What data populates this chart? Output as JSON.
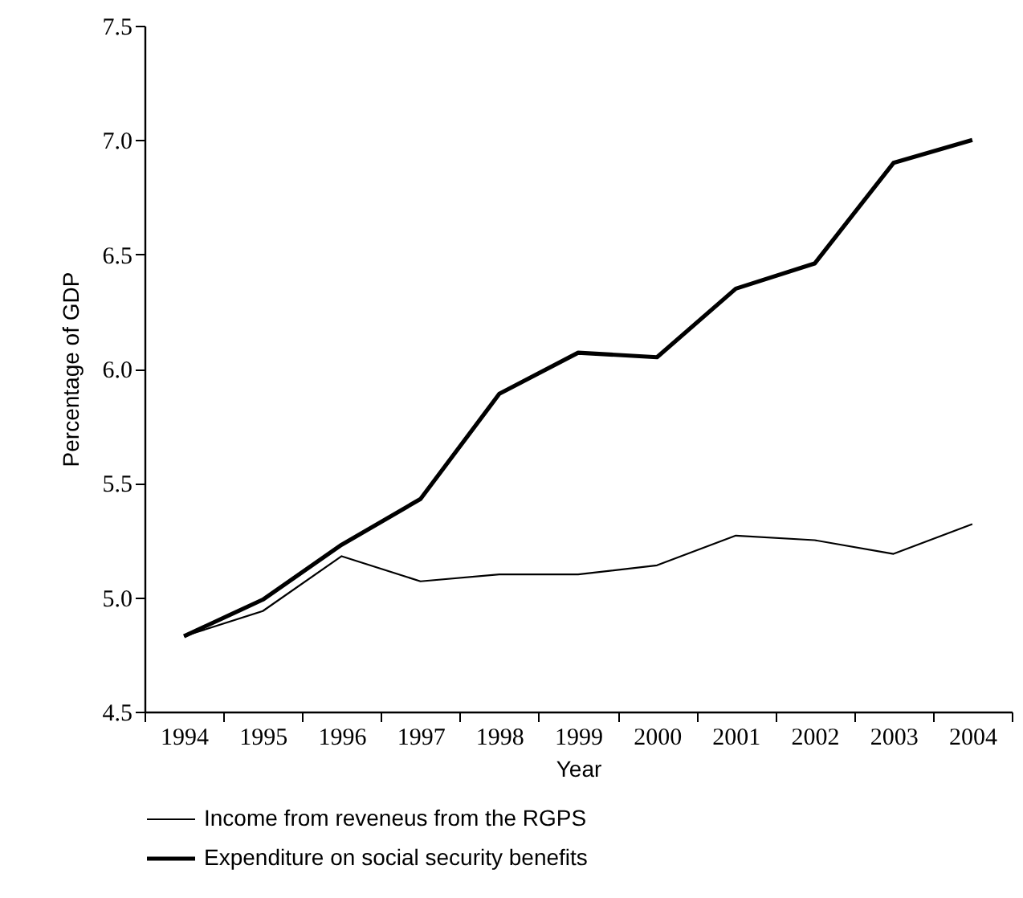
{
  "chart_data": {
    "type": "line",
    "xlabel": "Year",
    "ylabel": "Percentage of GDP",
    "categories": [
      "1994",
      "1995",
      "1996",
      "1997",
      "1998",
      "1999",
      "2000",
      "2001",
      "2002",
      "2003",
      "2004"
    ],
    "series": [
      {
        "name": "Income from reveneus from the RGPS",
        "color": "#000000",
        "values": [
          4.83,
          4.94,
          5.18,
          5.07,
          5.1,
          5.1,
          5.14,
          5.27,
          5.25,
          5.19,
          5.32
        ]
      },
      {
        "name": "Expenditure on social security benefits",
        "color": "#000000",
        "values": [
          4.83,
          4.99,
          5.23,
          5.43,
          5.89,
          6.07,
          6.05,
          6.35,
          6.46,
          6.9,
          7.0
        ]
      }
    ],
    "ylim": [
      4.5,
      7.5
    ],
    "yticks": [
      {
        "value": 4.5,
        "label": "4.5"
      },
      {
        "value": 5,
        "label": "5.0"
      },
      {
        "value": 5.5,
        "label": "5.5"
      },
      {
        "value": 6,
        "label": "6.0"
      },
      {
        "value": 6.5,
        "label": "6.5"
      },
      {
        "value": 7,
        "label": "7.0"
      },
      {
        "value": 7.5,
        "label": "7.5"
      }
    ],
    "grid": false,
    "legend": "bottom",
    "line_style": "solid",
    "marker": "none"
  }
}
